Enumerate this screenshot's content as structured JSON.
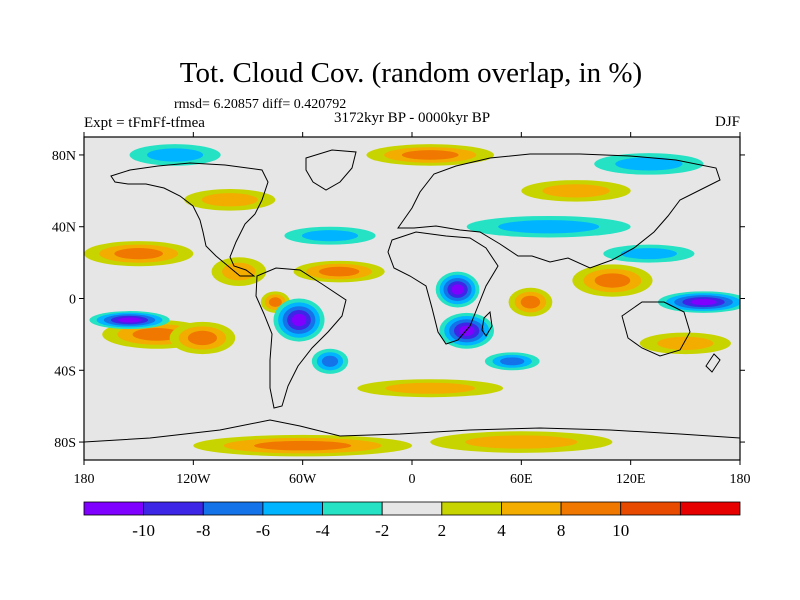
{
  "title": "Tot. Cloud Cov. (random overlap, in %)",
  "stats": "rmsd= 6.20857 diff= 0.420792",
  "experiment": "Expt = tFmFf-tfmea",
  "period": "3172kyr BP - 0000kyr BP",
  "season": "DJF",
  "map": {
    "projection": "cylindrical-equidistant",
    "lon_range": [
      -180,
      180
    ],
    "lat_range": [
      -90,
      90
    ],
    "x_ticks": [
      {
        "value": -180,
        "label": "180"
      },
      {
        "value": -120,
        "label": "120W"
      },
      {
        "value": -60,
        "label": "60W"
      },
      {
        "value": 0,
        "label": "0"
      },
      {
        "value": 60,
        "label": "60E"
      },
      {
        "value": 120,
        "label": "120E"
      },
      {
        "value": 180,
        "label": "180"
      }
    ],
    "y_ticks": [
      {
        "value": 80,
        "label": "80N"
      },
      {
        "value": 40,
        "label": "40N"
      },
      {
        "value": 0,
        "label": "0"
      },
      {
        "value": -40,
        "label": "40S"
      },
      {
        "value": -80,
        "label": "80S"
      }
    ],
    "field_blobs": [
      {
        "lon": -150,
        "lat": 25,
        "rlon": 30,
        "rlat": 7,
        "level": 3
      },
      {
        "lon": -140,
        "lat": -20,
        "rlon": 30,
        "rlat": 8,
        "level": 3
      },
      {
        "lon": -155,
        "lat": -12,
        "rlon": 22,
        "rlat": 5,
        "level": -5
      },
      {
        "lon": -115,
        "lat": -22,
        "rlon": 18,
        "rlat": 9,
        "level": 3
      },
      {
        "lon": -62,
        "lat": -12,
        "rlon": 14,
        "rlat": 12,
        "level": -5
      },
      {
        "lon": -45,
        "lat": -35,
        "rlon": 10,
        "rlat": 7,
        "level": -3
      },
      {
        "lon": -75,
        "lat": -2,
        "rlon": 8,
        "rlat": 6,
        "level": 3
      },
      {
        "lon": -95,
        "lat": 15,
        "rlon": 15,
        "rlat": 8,
        "level": 2
      },
      {
        "lon": -40,
        "lat": 15,
        "rlon": 25,
        "rlat": 6,
        "level": 3
      },
      {
        "lon": -45,
        "lat": 35,
        "rlon": 25,
        "rlat": 5,
        "level": -2
      },
      {
        "lon": 25,
        "lat": 5,
        "rlon": 12,
        "rlat": 10,
        "level": -5
      },
      {
        "lon": 30,
        "lat": -18,
        "rlon": 15,
        "rlat": 10,
        "level": -5
      },
      {
        "lon": 55,
        "lat": -35,
        "rlon": 15,
        "rlat": 5,
        "level": -3
      },
      {
        "lon": 65,
        "lat": -2,
        "rlon": 12,
        "rlat": 8,
        "level": 3
      },
      {
        "lon": 75,
        "lat": 40,
        "rlon": 45,
        "rlat": 6,
        "level": -2
      },
      {
        "lon": 110,
        "lat": 10,
        "rlon": 22,
        "rlat": 9,
        "level": 3
      },
      {
        "lon": 160,
        "lat": -2,
        "rlon": 25,
        "rlat": 6,
        "level": -5
      },
      {
        "lon": 130,
        "lat": 25,
        "rlon": 25,
        "rlat": 5,
        "level": -2
      },
      {
        "lon": 150,
        "lat": -25,
        "rlon": 25,
        "rlat": 6,
        "level": 2
      },
      {
        "lon": 10,
        "lat": -50,
        "rlon": 40,
        "rlat": 5,
        "level": 2
      },
      {
        "lon": -60,
        "lat": -82,
        "rlon": 60,
        "rlat": 6,
        "level": 3
      },
      {
        "lon": 60,
        "lat": -80,
        "rlon": 50,
        "rlat": 6,
        "level": 2
      },
      {
        "lon": -130,
        "lat": 80,
        "rlon": 25,
        "rlat": 6,
        "level": -2
      },
      {
        "lon": 10,
        "lat": 80,
        "rlon": 35,
        "rlat": 6,
        "level": 3
      },
      {
        "lon": 130,
        "lat": 75,
        "rlon": 30,
        "rlat": 6,
        "level": -2
      },
      {
        "lon": -100,
        "lat": 55,
        "rlon": 25,
        "rlat": 6,
        "level": 2
      },
      {
        "lon": 90,
        "lat": 60,
        "rlon": 30,
        "rlat": 6,
        "level": 2
      }
    ]
  },
  "colorbar": {
    "colors": [
      "#7f00ff",
      "#3e26e6",
      "#1473e8",
      "#00b4ff",
      "#25e2c4",
      "#e6e6e6",
      "#c8d400",
      "#f2ad00",
      "#f07800",
      "#e84a00",
      "#e60000"
    ],
    "ticks": [
      {
        "value": -10,
        "label": "-10"
      },
      {
        "value": -8,
        "label": "-8"
      },
      {
        "value": -6,
        "label": "-6"
      },
      {
        "value": -4,
        "label": "-4"
      },
      {
        "value": -2,
        "label": "-2"
      },
      {
        "value": 2,
        "label": "2"
      },
      {
        "value": 4,
        "label": "4"
      },
      {
        "value": 8,
        "label": "8"
      },
      {
        "value": 10,
        "label": "10"
      }
    ]
  }
}
